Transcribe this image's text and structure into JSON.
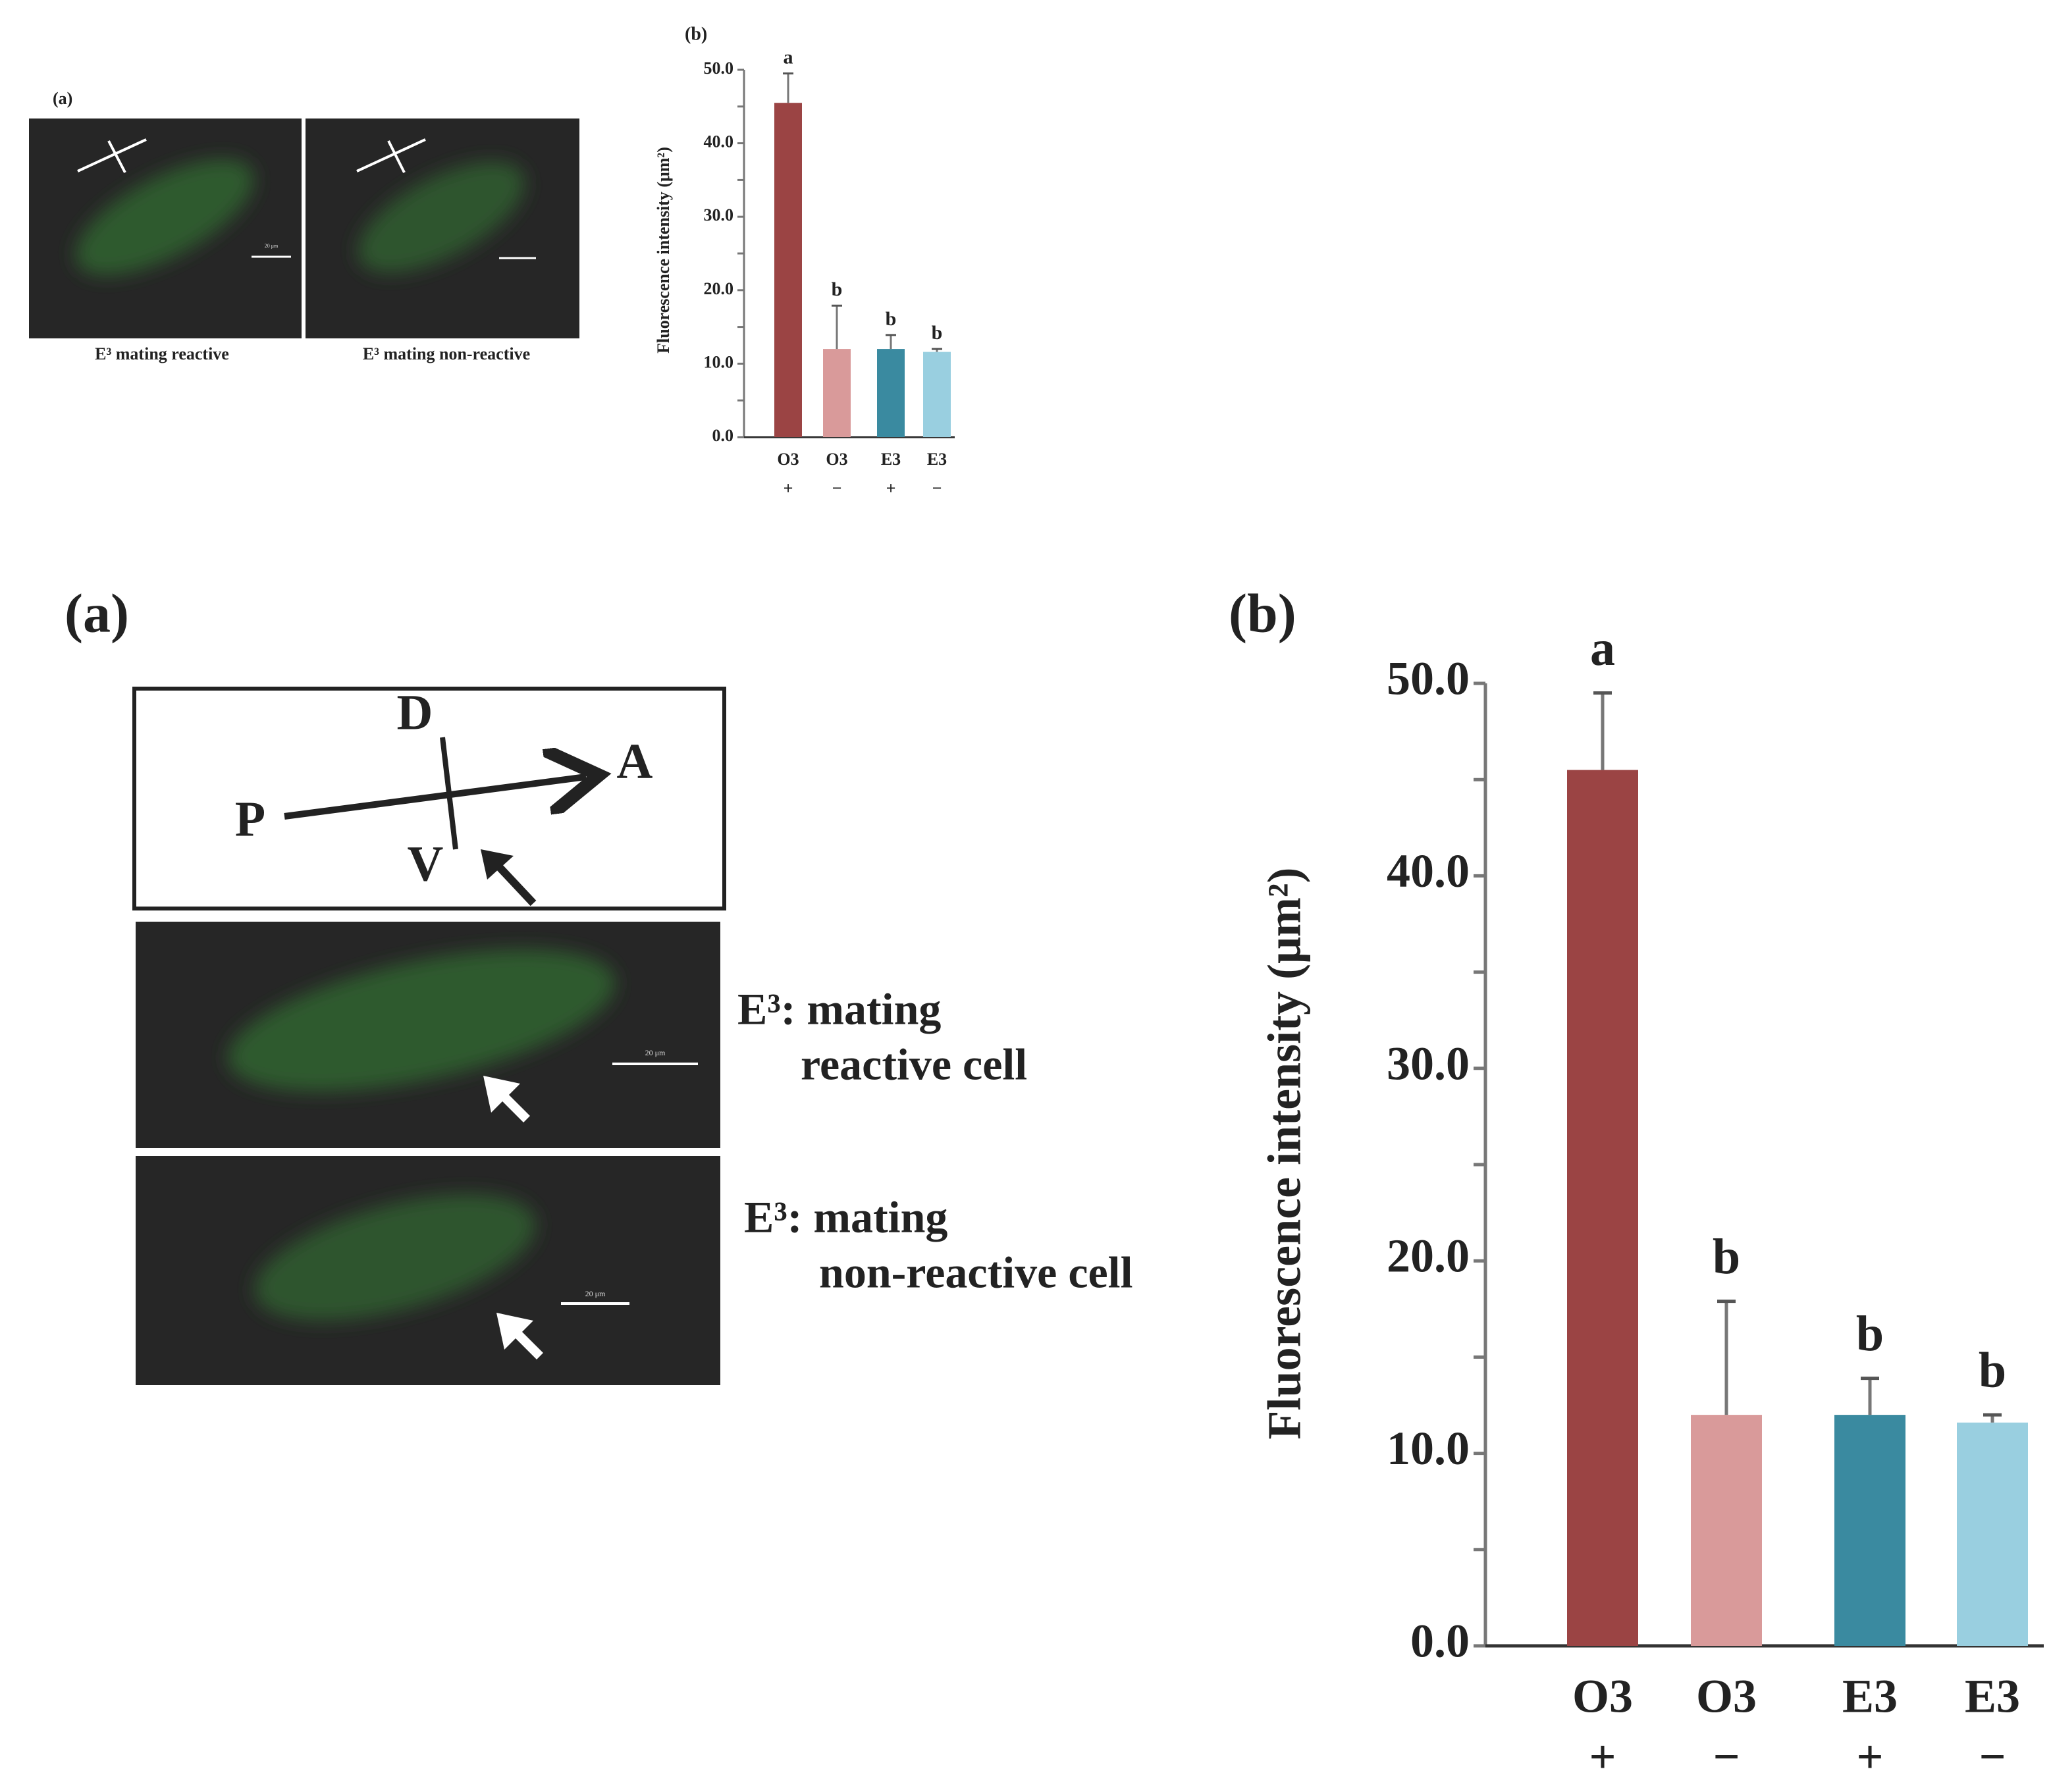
{
  "panels": {
    "a_small": "(a)",
    "b_small": "(b)",
    "a": "(a)",
    "b": "(b)"
  },
  "small_images": {
    "captions": [
      "E³ mating reactive",
      "E³ mating non-reactive"
    ],
    "scale_bar": "20 μm"
  },
  "diagram": {
    "labels": [
      "D",
      "A",
      "P",
      "V"
    ]
  },
  "images": {
    "captions": [
      [
        "E³: mating",
        "reactive cell"
      ],
      [
        "E³: mating",
        "non-reactive cell"
      ]
    ],
    "scale_bar": "20 μm"
  },
  "chart_data": [
    {
      "type": "bar",
      "y_label": "Fluorescence intensity (μm²)",
      "categories": [
        "O3",
        "O3",
        "E3",
        "E3"
      ],
      "subcategories": [
        "+",
        "−",
        "+",
        "−"
      ],
      "values": [
        45.5,
        12.0,
        12.0,
        11.6
      ],
      "errors": [
        4.0,
        5.9,
        1.9,
        0.4
      ],
      "annotations": [
        "a",
        "b",
        "b",
        "b"
      ],
      "colors": [
        "#9b4444",
        "#d99a9a",
        "#3a8aa0",
        "#99cfe0"
      ],
      "ylim": [
        0,
        50
      ],
      "yticks": [
        {
          "value": 0,
          "label": "0.0"
        },
        {
          "value": 10,
          "label": "10.0"
        },
        {
          "value": 20,
          "label": "20.0"
        },
        {
          "value": 30,
          "label": "30.0"
        },
        {
          "value": 40,
          "label": "40.0"
        },
        {
          "value": 50,
          "label": "50.0"
        }
      ],
      "yminor": [
        5,
        15,
        25,
        35,
        45
      ]
    },
    {
      "type": "bar",
      "y_label": "Fluorescence intensity (μm²)",
      "categories": [
        "O3",
        "O3",
        "E3",
        "E3"
      ],
      "subcategories": [
        "+",
        "−",
        "+",
        "−"
      ],
      "values": [
        45.5,
        12.0,
        12.0,
        11.6
      ],
      "errors": [
        4.0,
        5.9,
        1.9,
        0.4
      ],
      "annotations": [
        "a",
        "b",
        "b",
        "b"
      ],
      "colors": [
        "#9b4444",
        "#d99a9a",
        "#3a8aa0",
        "#99cfe0"
      ],
      "ylim": [
        0,
        50
      ],
      "yticks": [
        {
          "value": 0,
          "label": "0.0"
        },
        {
          "value": 10,
          "label": "10.0"
        },
        {
          "value": 20,
          "label": "20.0"
        },
        {
          "value": 30,
          "label": "30.0"
        },
        {
          "value": 40,
          "label": "40.0"
        },
        {
          "value": 50,
          "label": "50.0"
        }
      ],
      "yminor": [
        5,
        15,
        25,
        35,
        45
      ]
    }
  ]
}
